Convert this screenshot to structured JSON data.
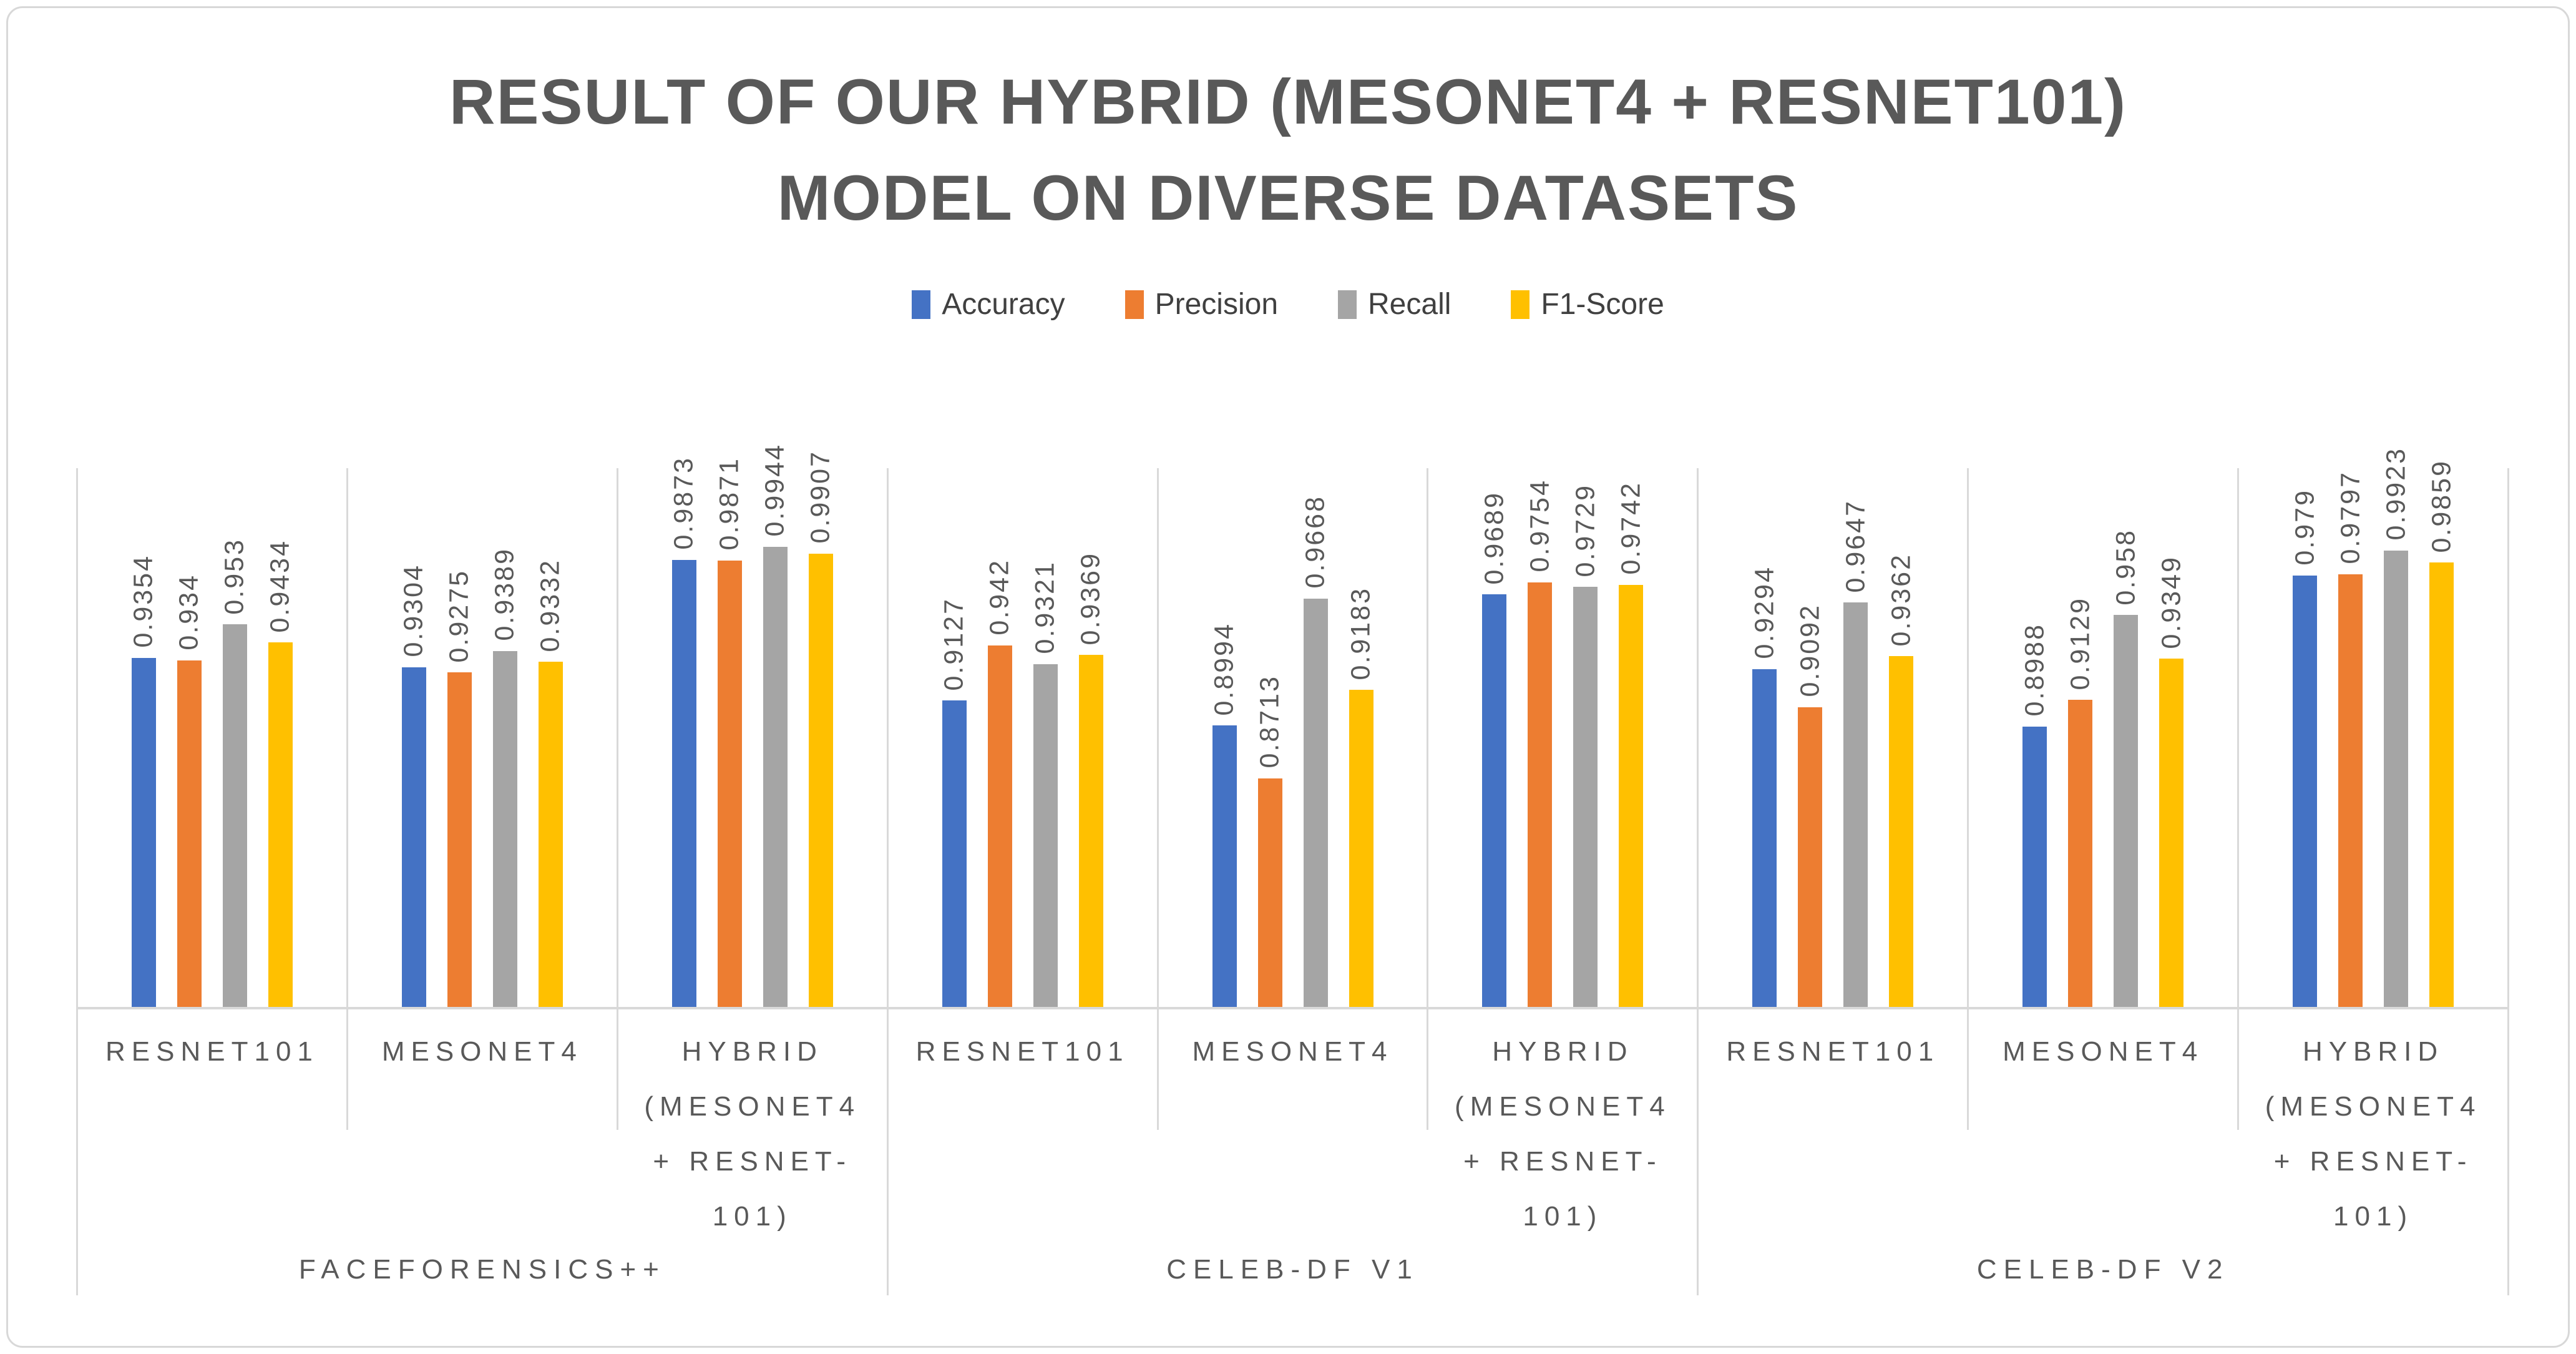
{
  "title": {
    "line1": "RESULT OF OUR HYBRID (MESONET4 + RESNET101)",
    "line2": "MODEL ON DIVERSE DATASETS"
  },
  "colors": {
    "accuracy": "#4472C4",
    "precision": "#ED7D31",
    "recall": "#A5A5A5",
    "f1_score": "#FFC000",
    "title_text": "#595959",
    "axis_text": "#595959",
    "separator_line": "#D9D9D9",
    "background": "#FFFFFF"
  },
  "chart_data": {
    "type": "bar",
    "title": "RESULT OF OUR HYBRID (MESONET4 + RESNET101) MODEL ON DIVERSE DATASETS",
    "legend_position": "top",
    "grid": false,
    "value_axis_visible": false,
    "ylim": [
      0.75,
      1.0
    ],
    "series": [
      {
        "name": "Accuracy",
        "color": "#4472C4",
        "values": [
          "0.9354",
          "0.9304",
          "0.9873",
          "0.9127",
          "0.8994",
          "0.9689",
          "0.9294",
          "0.8988",
          "0.979"
        ]
      },
      {
        "name": "Precision",
        "color": "#ED7D31",
        "values": [
          "0.934",
          "0.9275",
          "0.9871",
          "0.942",
          "0.8713",
          "0.9754",
          "0.9092",
          "0.9129",
          "0.9797"
        ]
      },
      {
        "name": "Recall",
        "color": "#A5A5A5",
        "values": [
          "0.953",
          "0.9389",
          "0.9944",
          "0.9321",
          "0.9668",
          "0.9729",
          "0.9647",
          "0.958",
          "0.9923"
        ]
      },
      {
        "name": "F1-Score",
        "color": "#FFC000",
        "values": [
          "0.9434",
          "0.9332",
          "0.9907",
          "0.9369",
          "0.9183",
          "0.9742",
          "0.9362",
          "0.9349",
          "0.9859"
        ]
      }
    ],
    "categories": [
      {
        "model": "RESNET101",
        "lines": [
          "RESNET101"
        ],
        "dataset": "FACEFORENSICS++"
      },
      {
        "model": "MESONET4",
        "lines": [
          "MESONET4"
        ],
        "dataset": "FACEFORENSICS++"
      },
      {
        "model": "HYBRID (MESONET4 + RESNET-101)",
        "lines": [
          "HYBRID",
          "(MESONET4",
          "+ RESNET-",
          "101)"
        ],
        "dataset": "FACEFORENSICS++"
      },
      {
        "model": "RESNET101",
        "lines": [
          "RESNET101"
        ],
        "dataset": "CELEB-DF V1"
      },
      {
        "model": "MESONET4",
        "lines": [
          "MESONET4"
        ],
        "dataset": "CELEB-DF V1"
      },
      {
        "model": "HYBRID (MESONET4 + RESNET-101)",
        "lines": [
          "HYBRID",
          "(MESONET4",
          "+ RESNET-",
          "101)"
        ],
        "dataset": "CELEB-DF V1"
      },
      {
        "model": "RESNET101",
        "lines": [
          "RESNET101"
        ],
        "dataset": "CELEB-DF V2"
      },
      {
        "model": "MESONET4",
        "lines": [
          "MESONET4"
        ],
        "dataset": "CELEB-DF V2"
      },
      {
        "model": "HYBRID (MESONET4 + RESNET-101)",
        "lines": [
          "HYBRID",
          "(MESONET4",
          "+ RESNET-",
          "101)"
        ],
        "dataset": "CELEB-DF V2"
      }
    ],
    "dataset_labels": [
      "FACEFORENSICS++",
      "CELEB-DF V1",
      "CELEB-DF V2"
    ]
  }
}
